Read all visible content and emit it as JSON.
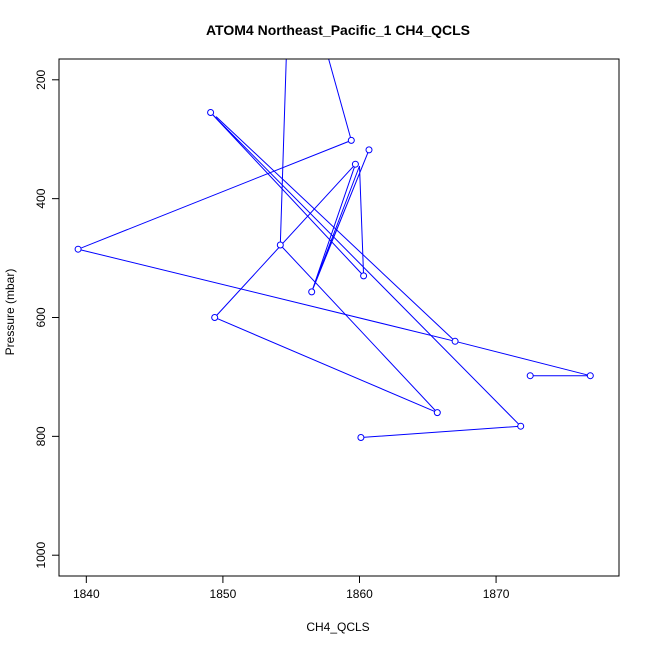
{
  "chart_data": {
    "type": "line",
    "title": "ATOM4 Northeast_Pacific_1 CH4_QCLS",
    "xlabel": "CH4_QCLS",
    "ylabel": "Pressure (mbar)",
    "xlim": [
      1838,
      1879
    ],
    "ylim": [
      1035,
      165
    ],
    "y_reversed": true,
    "x_ticks": [
      1840,
      1850,
      1860,
      1870
    ],
    "y_ticks": [
      200,
      400,
      600,
      800,
      1000
    ],
    "grid": false,
    "line_color": "#0000ff",
    "marker": "open-circle",
    "series": [
      {
        "points": [
          {
            "x": 1854.7,
            "y": 120
          },
          {
            "x": 1854.2,
            "y": 478
          },
          {
            "x": 1865.7,
            "y": 760
          },
          {
            "x": 1849.4,
            "y": 600
          },
          {
            "x": 1859.7,
            "y": 342
          },
          {
            "x": 1856.5,
            "y": 557
          },
          {
            "x": 1860.7,
            "y": 318
          },
          {
            "x": 1856.7,
            "y": 545
          },
          {
            "x": 1860.0,
            "y": 345
          },
          {
            "x": 1860.3,
            "y": 530
          },
          {
            "x": 1849.1,
            "y": 255
          },
          {
            "x": 1871.8,
            "y": 783
          },
          {
            "x": 1860.1,
            "y": 802
          }
        ]
      },
      {
        "points": [
          {
            "x": 1857.2,
            "y": 120
          },
          {
            "x": 1859.4,
            "y": 302
          },
          {
            "x": 1839.4,
            "y": 485
          },
          {
            "x": 1867.0,
            "y": 640
          },
          {
            "x": 1876.9,
            "y": 698
          },
          {
            "x": 1872.5,
            "y": 698
          }
        ]
      },
      {
        "points": [
          {
            "x": 1849.5,
            "y": 262
          },
          {
            "x": 1867.0,
            "y": 640
          }
        ]
      }
    ],
    "markers": [
      {
        "x": 1859.4,
        "y": 302
      },
      {
        "x": 1839.4,
        "y": 485
      },
      {
        "x": 1867.0,
        "y": 640
      },
      {
        "x": 1876.9,
        "y": 698
      },
      {
        "x": 1872.5,
        "y": 698
      },
      {
        "x": 1854.2,
        "y": 478
      },
      {
        "x": 1865.7,
        "y": 760
      },
      {
        "x": 1849.4,
        "y": 600
      },
      {
        "x": 1859.7,
        "y": 342
      },
      {
        "x": 1856.5,
        "y": 557
      },
      {
        "x": 1860.7,
        "y": 318
      },
      {
        "x": 1860.3,
        "y": 530
      },
      {
        "x": 1849.1,
        "y": 255
      },
      {
        "x": 1871.8,
        "y": 783
      },
      {
        "x": 1860.1,
        "y": 802
      }
    ]
  }
}
